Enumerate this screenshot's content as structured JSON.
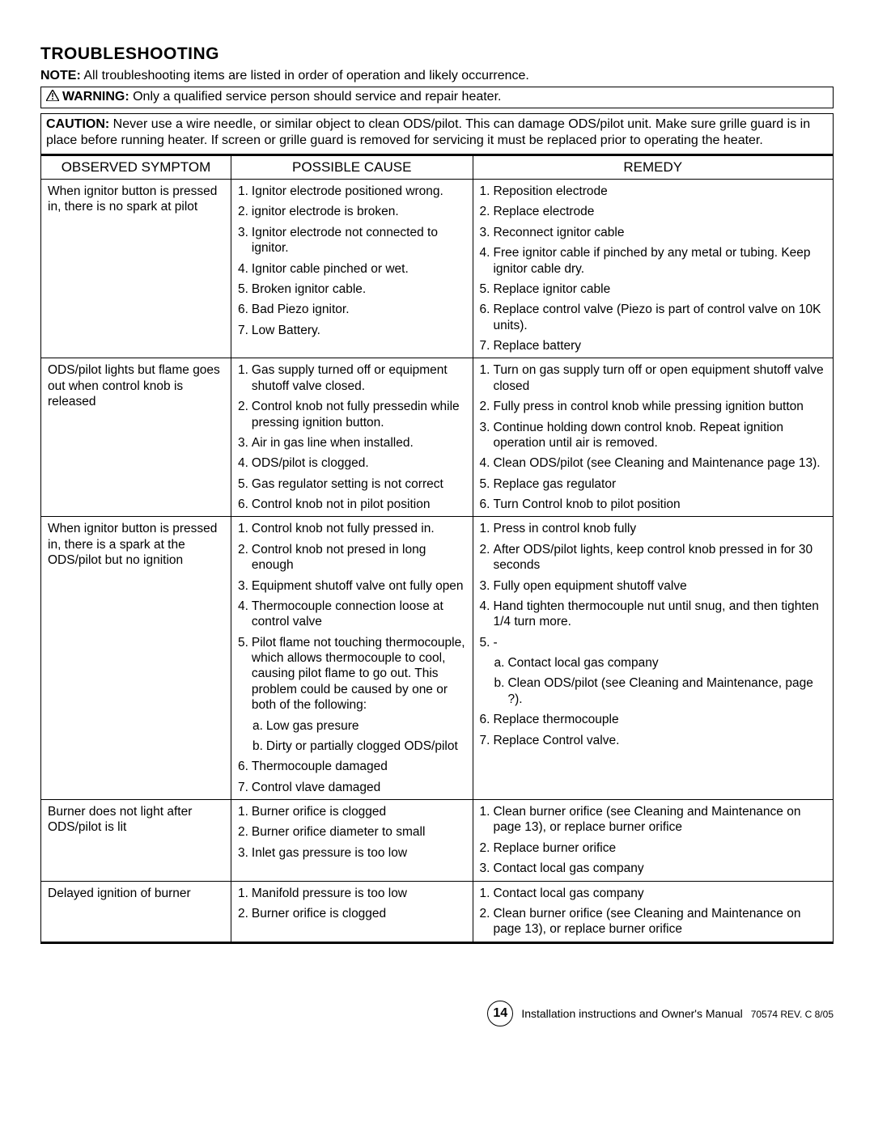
{
  "heading": "TROUBLESHOOTING",
  "note_label": "NOTE:",
  "note_text": " All troubleshooting items are listed in order of operation and likely occurrence.",
  "warning_label": "WARNING:",
  "warning_text": " Only a qualified service person should service and repair heater.",
  "caution_label": "CAUTION:",
  "caution_text": " Never use a wire needle, or similar object to clean ODS/pilot. This can damage ODS/pilot unit. Make sure grille guard is in place before running heater.  If screen or grille guard is removed for servicing it must be replaced prior to operating the heater.",
  "columns": [
    "OBSERVED SYMPTOM",
    "POSSIBLE CAUSE",
    "REMEDY"
  ],
  "col_widths": [
    "24%",
    "30.5%",
    "45.5%"
  ],
  "rows": [
    {
      "symptom": "When ignitor button is pressed in, there is no spark at pilot",
      "causes": [
        {
          "n": "1.",
          "t": "Ignitor electrode positioned wrong."
        },
        {
          "n": "2.",
          "t": "ignitor electrode is broken."
        },
        {
          "n": "3.",
          "t": "Ignitor electrode not connected to ignitor."
        },
        {
          "n": "4.",
          "t": "Ignitor cable pinched or wet."
        },
        {
          "n": "5.",
          "t": "Broken ignitor cable."
        },
        {
          "n": "6.",
          "t": "Bad Piezo ignitor."
        },
        {
          "n": "7.",
          "t": "Low Battery."
        }
      ],
      "remedies": [
        {
          "n": "1.",
          "t": "Reposition electrode"
        },
        {
          "n": "2.",
          "t": "Replace electrode"
        },
        {
          "n": "3.",
          "t": "Reconnect ignitor cable"
        },
        {
          "n": "4.",
          "t": "Free ignitor cable if pinched by any metal or tubing. Keep ignitor cable dry."
        },
        {
          "n": "5.",
          "t": "Replace ignitor cable"
        },
        {
          "n": "6.",
          "t": "Replace control valve (Piezo is part of control valve on 10K units)."
        },
        {
          "n": "7.",
          "t": "Replace battery"
        }
      ]
    },
    {
      "symptom": "ODS/pilot lights but flame goes out when control knob is released",
      "causes": [
        {
          "n": "1.",
          "t": "Gas supply turned off or equipment shutoff valve closed."
        },
        {
          "n": "2.",
          "t": "Control knob not fully pressedin while pressing ignition button."
        },
        {
          "n": "3.",
          "t": "Air in gas line when installed."
        },
        {
          "n": "4.",
          "t": "ODS/pilot is clogged."
        },
        {
          "n": "5.",
          "t": "Gas regulator setting is not correct"
        },
        {
          "n": "6.",
          "t": "Control knob not in pilot position"
        }
      ],
      "remedies": [
        {
          "n": "1.",
          "t": "Turn on gas supply turn off or open equipment shutoff valve closed"
        },
        {
          "n": "2.",
          "t": "Fully press in control knob while pressing ignition button"
        },
        {
          "n": "3.",
          "t": "Continue holding down control knob. Repeat ignition operation until air is removed."
        },
        {
          "n": "4.",
          "t": "Clean ODS/pilot (see Cleaning and Maintenance page 13)."
        },
        {
          "n": "5.",
          "t": "Replace gas regulator"
        },
        {
          "n": "6.",
          "t": "Turn Control knob to pilot position"
        }
      ]
    },
    {
      "symptom": "When ignitor button is pressed in, there is a spark at the ODS/pilot but no ignition",
      "causes": [
        {
          "n": "1.",
          "t": "Control knob not fully pressed in."
        },
        {
          "n": "2.",
          "t": "Control knob not presed in long enough"
        },
        {
          "n": "3.",
          "t": "Equipment shutoff valve ont fully open"
        },
        {
          "n": "4.",
          "t": "Thermocouple connection loose at control valve"
        },
        {
          "n": "5.",
          "t": "Pilot flame not touching thermocouple, which allows thermocouple to cool, causing pilot flame to go out. This problem could be caused by one or both of the following:"
        },
        {
          "n": "a.",
          "t": "Low gas presure",
          "sub": true
        },
        {
          "n": "b.",
          "t": "Dirty or partially clogged ODS/pilot",
          "sub": true
        },
        {
          "n": "6.",
          "t": "Thermocouple damaged"
        },
        {
          "n": "7.",
          "t": "Control vlave damaged"
        }
      ],
      "remedies": [
        {
          "n": "1.",
          "t": "Press in control knob fully"
        },
        {
          "n": "2.",
          "t": "After ODS/pilot lights, keep control knob pressed in for 30 seconds"
        },
        {
          "n": "3.",
          "t": "Fully open equipment shutoff valve"
        },
        {
          "n": "4.",
          "t": "Hand tighten thermocouple nut until snug, and then tighten 1/4 turn more."
        },
        {
          "n": "5.",
          "t": "-"
        },
        {
          "n": "a.",
          "t": "Contact local gas company",
          "sub": true
        },
        {
          "n": "b.",
          "t": "Clean ODS/pilot (see Cleaning and Maintenance, page ?).",
          "sub": true
        },
        {
          "n": "6.",
          "t": "Replace thermocouple"
        },
        {
          "n": "7.",
          "t": "Replace Control valve."
        }
      ]
    },
    {
      "symptom": "Burner does not light after ODS/pilot is lit",
      "causes": [
        {
          "n": "1.",
          "t": "Burner orifice is clogged"
        },
        {
          "n": "2.",
          "t": "Burner orifice  diameter to small"
        },
        {
          "n": "3.",
          "t": "Inlet gas pressure is too low"
        }
      ],
      "remedies": [
        {
          "n": "1.",
          "t": "Clean burner orifice (see Cleaning and Maintenance on page 13), or replace burner orifice"
        },
        {
          "n": "2.",
          "t": "Replace burner orifice"
        },
        {
          "n": "3.",
          "t": "Contact local gas company"
        }
      ]
    },
    {
      "symptom": "Delayed ignition of burner",
      "causes": [
        {
          "n": "1.",
          "t": "Manifold pressure is too low"
        },
        {
          "n": "2.",
          "t": "Burner orifice is clogged"
        }
      ],
      "remedies": [
        {
          "n": "1.",
          "t": "Contact local gas company"
        },
        {
          "n": "2.",
          "t": "Clean burner orifice (see Cleaning and Maintenance on page 13), or replace burner orifice"
        }
      ]
    }
  ],
  "footer": {
    "page_number": "14",
    "title": "Installation instructions and Owner's Manual",
    "docnum": "70574  REV. C  8/05"
  }
}
